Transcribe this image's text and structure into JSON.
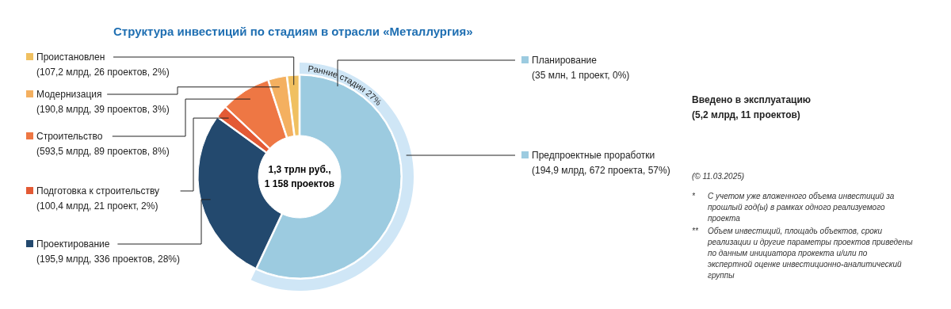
{
  "chart_data": {
    "type": "donut",
    "title": "Структура инвестиций по стадиям в отрасли «Металлургия»",
    "categories": [
      "Планирование",
      "Предпроектные проработки",
      "Проектирование",
      "Подготовка к строительству",
      "Строительство",
      "Модернизация",
      "Проистановлен"
    ],
    "values": [
      0,
      57,
      28,
      2,
      8,
      3,
      2
    ],
    "legend": "top right",
    "value_labels": [
      "(35 млн, 1 проект, 0%)",
      "(194,9 млрд, 672 проекта, 57%)",
      "(195,9 млрд, 336 проектов, 28%)",
      "(100,4 млрд, 21 проект, 2%)",
      "(593,5 млрд, 89 проектов, 8%)",
      "(190,8 млрд, 39 проектов, 3%)",
      "(107,2 млрд, 26 проектов, 2%)"
    ],
    "colors": [
      "#9ccbe0",
      "#9ccbe0",
      "#23496e",
      "#e35a35",
      "#ee7744",
      "#f4b060",
      "#f0c060"
    ],
    "annotations": [
      "1,3 трлн руб., 1 158 проектов",
      "Ранние стадии 27%",
      "Введено в эксплуатацию (5,2 млрд, 11 проектов)",
      "(© 11.03.2025)",
      "* С учетом уже вложенного объема инвестиций за прошлый год(ы) в рамках одного реализуемого проекта",
      "** Объем инвестиций, площадь объектов, сроки реализации и другие параметры проектов приведены по данным инициатора прокекта и/или по экспертной оценке инвестиционно-аналитический группы"
    ]
  }
}
